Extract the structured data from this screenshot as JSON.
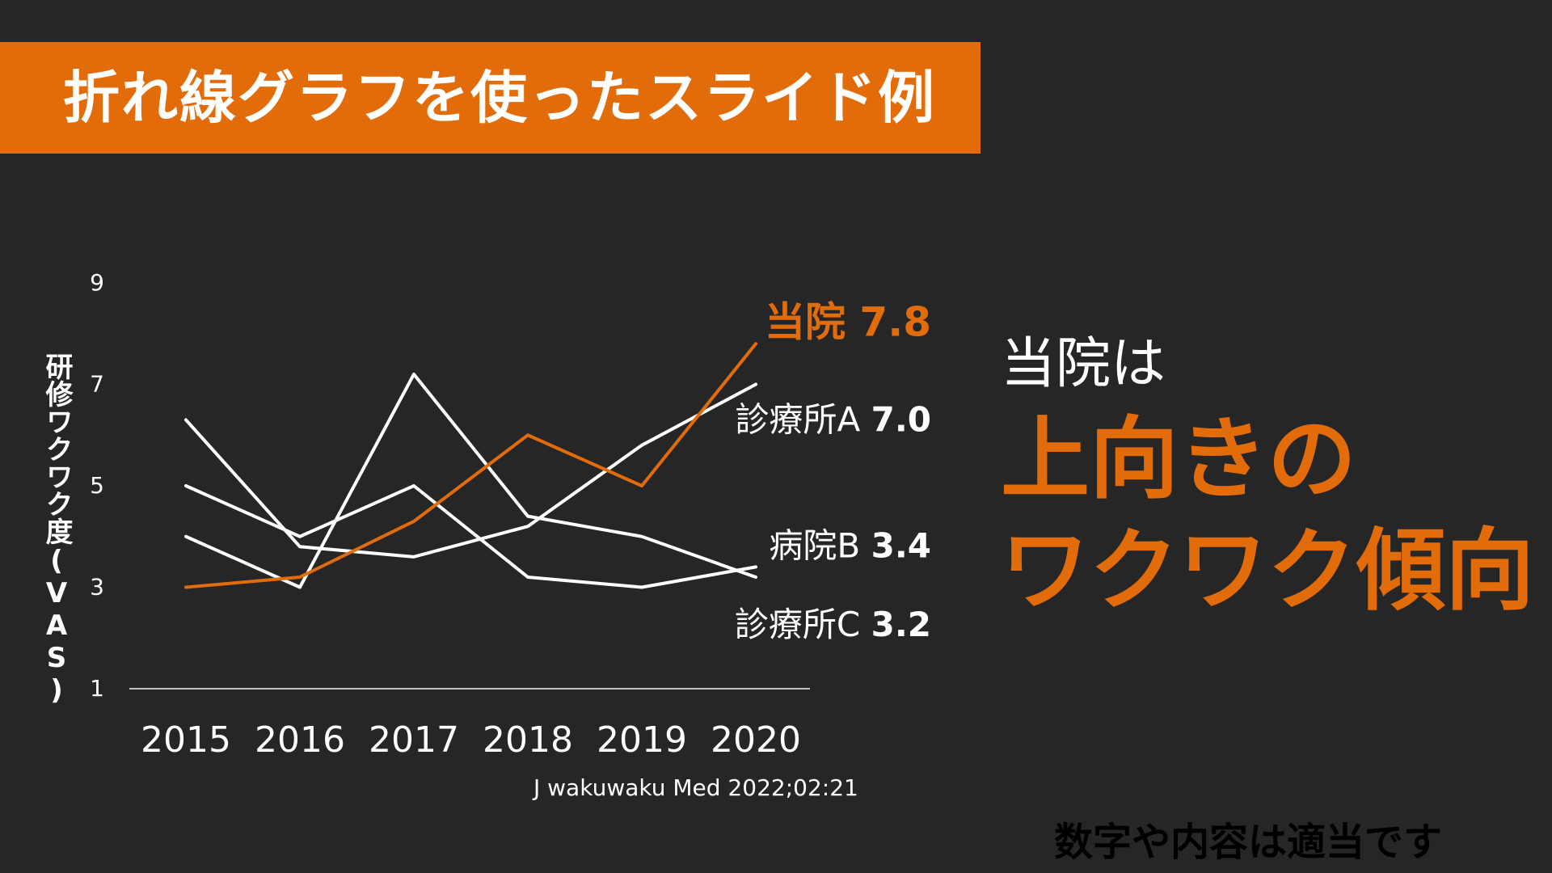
{
  "slide": {
    "title": "折れ線グラフを使ったスライド例",
    "message_line1": "当院は",
    "message_line2": "上向きの",
    "message_line3": "ワクワク傾向",
    "source": "J wakuwaku Med 2022;02:21",
    "note": "数字や内容は適当です"
  },
  "colors": {
    "background": "#262626",
    "accent": "#E36C0A",
    "line": "#FFFFFF",
    "axis": "#BFBFBF"
  },
  "chart_data": {
    "type": "line",
    "title": "",
    "xlabel": "",
    "ylabel": "研修ワクワク度(VAS)",
    "x": [
      "2015",
      "2016",
      "2017",
      "2018",
      "2019",
      "2020"
    ],
    "yticks": [
      "9",
      "7",
      "5",
      "3",
      "1"
    ],
    "ylim": [
      1,
      9
    ],
    "grid": false,
    "legend": "direct-labels",
    "series": [
      {
        "name": "当院",
        "end_label": "7.8",
        "highlight": true,
        "values": [
          3.0,
          3.2,
          4.3,
          6.0,
          5.0,
          7.8
        ]
      },
      {
        "name": "診療所A",
        "end_label": "7.0",
        "highlight": false,
        "values": [
          6.3,
          3.8,
          3.6,
          4.2,
          5.8,
          7.0
        ]
      },
      {
        "name": "病院B",
        "end_label": "3.4",
        "highlight": false,
        "values": [
          5.0,
          4.0,
          5.0,
          3.2,
          3.0,
          3.4
        ]
      },
      {
        "name": "診療所C",
        "end_label": "3.2",
        "highlight": false,
        "values": [
          4.0,
          3.0,
          7.2,
          4.4,
          4.0,
          3.2
        ]
      }
    ]
  }
}
